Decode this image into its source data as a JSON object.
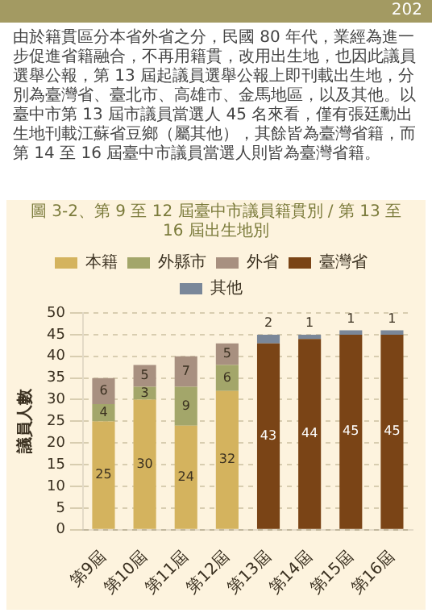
{
  "chart_data": {
    "type": "bar",
    "title": "圖 3-2、第 9 至 12 屆臺中市議員籍貫別 / 第 13 至 16 屆出生地別",
    "ylabel": "議員人數",
    "annotations": [
      "由於籍貫區分本省外省之分，民國 80 年代，業經為進一步促進省籍融合，不再用籍貫，改用出生地，也因此議員選舉公報，第 13 屆起議員選舉公報上即刊載出生地，分別為臺灣省、臺北市、高雄市、金馬地區，以及其他。以臺中市第 13 屆市議員當選人 45 名來看，僅有張廷勳出生地刊載江蘇省豆鄉（屬其他），其餘皆為臺灣省籍，而第 14 至 16 屆臺中市議員當選人則皆為臺灣省籍。",
      "202"
    ],
    "categories": [
      "第9屆",
      "第10屆",
      "第11屆",
      "第12屆",
      "第13屆",
      "第14屆",
      "第15屆",
      "第16屆"
    ],
    "stacked": true,
    "data_labels": true,
    "legend": "top",
    "grid": "y",
    "ylim": [
      0,
      50
    ],
    "yticks": [
      0,
      5,
      10,
      15,
      20,
      25,
      30,
      35,
      40,
      45,
      50
    ],
    "series": [
      {
        "name": "本籍",
        "color": "#d4b35e",
        "values": [
          25,
          30,
          24,
          32,
          null,
          null,
          null,
          null
        ]
      },
      {
        "name": "外縣市",
        "color": "#a3a66a",
        "values": [
          4,
          3,
          9,
          6,
          null,
          null,
          null,
          null
        ]
      },
      {
        "name": "外省",
        "color": "#a89080",
        "values": [
          6,
          5,
          7,
          5,
          null,
          null,
          null,
          null
        ]
      },
      {
        "name": "臺灣省",
        "color": "#7a4416",
        "values": [
          null,
          null,
          null,
          null,
          43,
          44,
          45,
          45
        ]
      },
      {
        "name": "其他",
        "color": "#7a8799",
        "values": [
          null,
          null,
          null,
          null,
          2,
          1,
          1,
          1
        ]
      }
    ]
  }
}
